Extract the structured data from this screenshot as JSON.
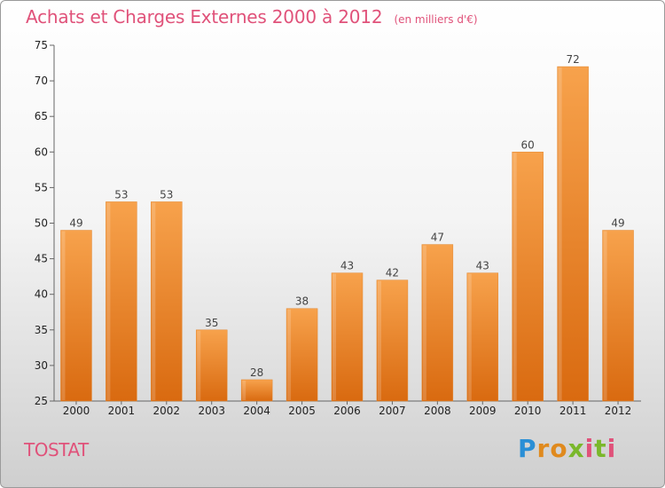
{
  "header": {
    "title": "Achats et Charges Externes 2000 à 2012",
    "subtitle": "(en milliers d'€)"
  },
  "footer": {
    "commune": "TOSTAT",
    "logo_text": "Proxiti"
  },
  "colors": {
    "bar_top": "#f7a24c",
    "bar_bottom": "#d96a10",
    "title": "#e0527a"
  },
  "chart_data": {
    "type": "bar",
    "title": "Achats et Charges Externes 2000 à 2012",
    "subtitle": "(en milliers d'€)",
    "categories": [
      "2000",
      "2001",
      "2002",
      "2003",
      "2004",
      "2005",
      "2006",
      "2007",
      "2008",
      "2009",
      "2010",
      "2011",
      "2012"
    ],
    "values": [
      49,
      53,
      53,
      35,
      28,
      38,
      43,
      42,
      47,
      43,
      60,
      72,
      49
    ],
    "ylim": [
      25,
      75
    ],
    "yticks": [
      25,
      30,
      35,
      40,
      45,
      50,
      55,
      60,
      65,
      70,
      75
    ],
    "grid": false,
    "legend": "none"
  }
}
